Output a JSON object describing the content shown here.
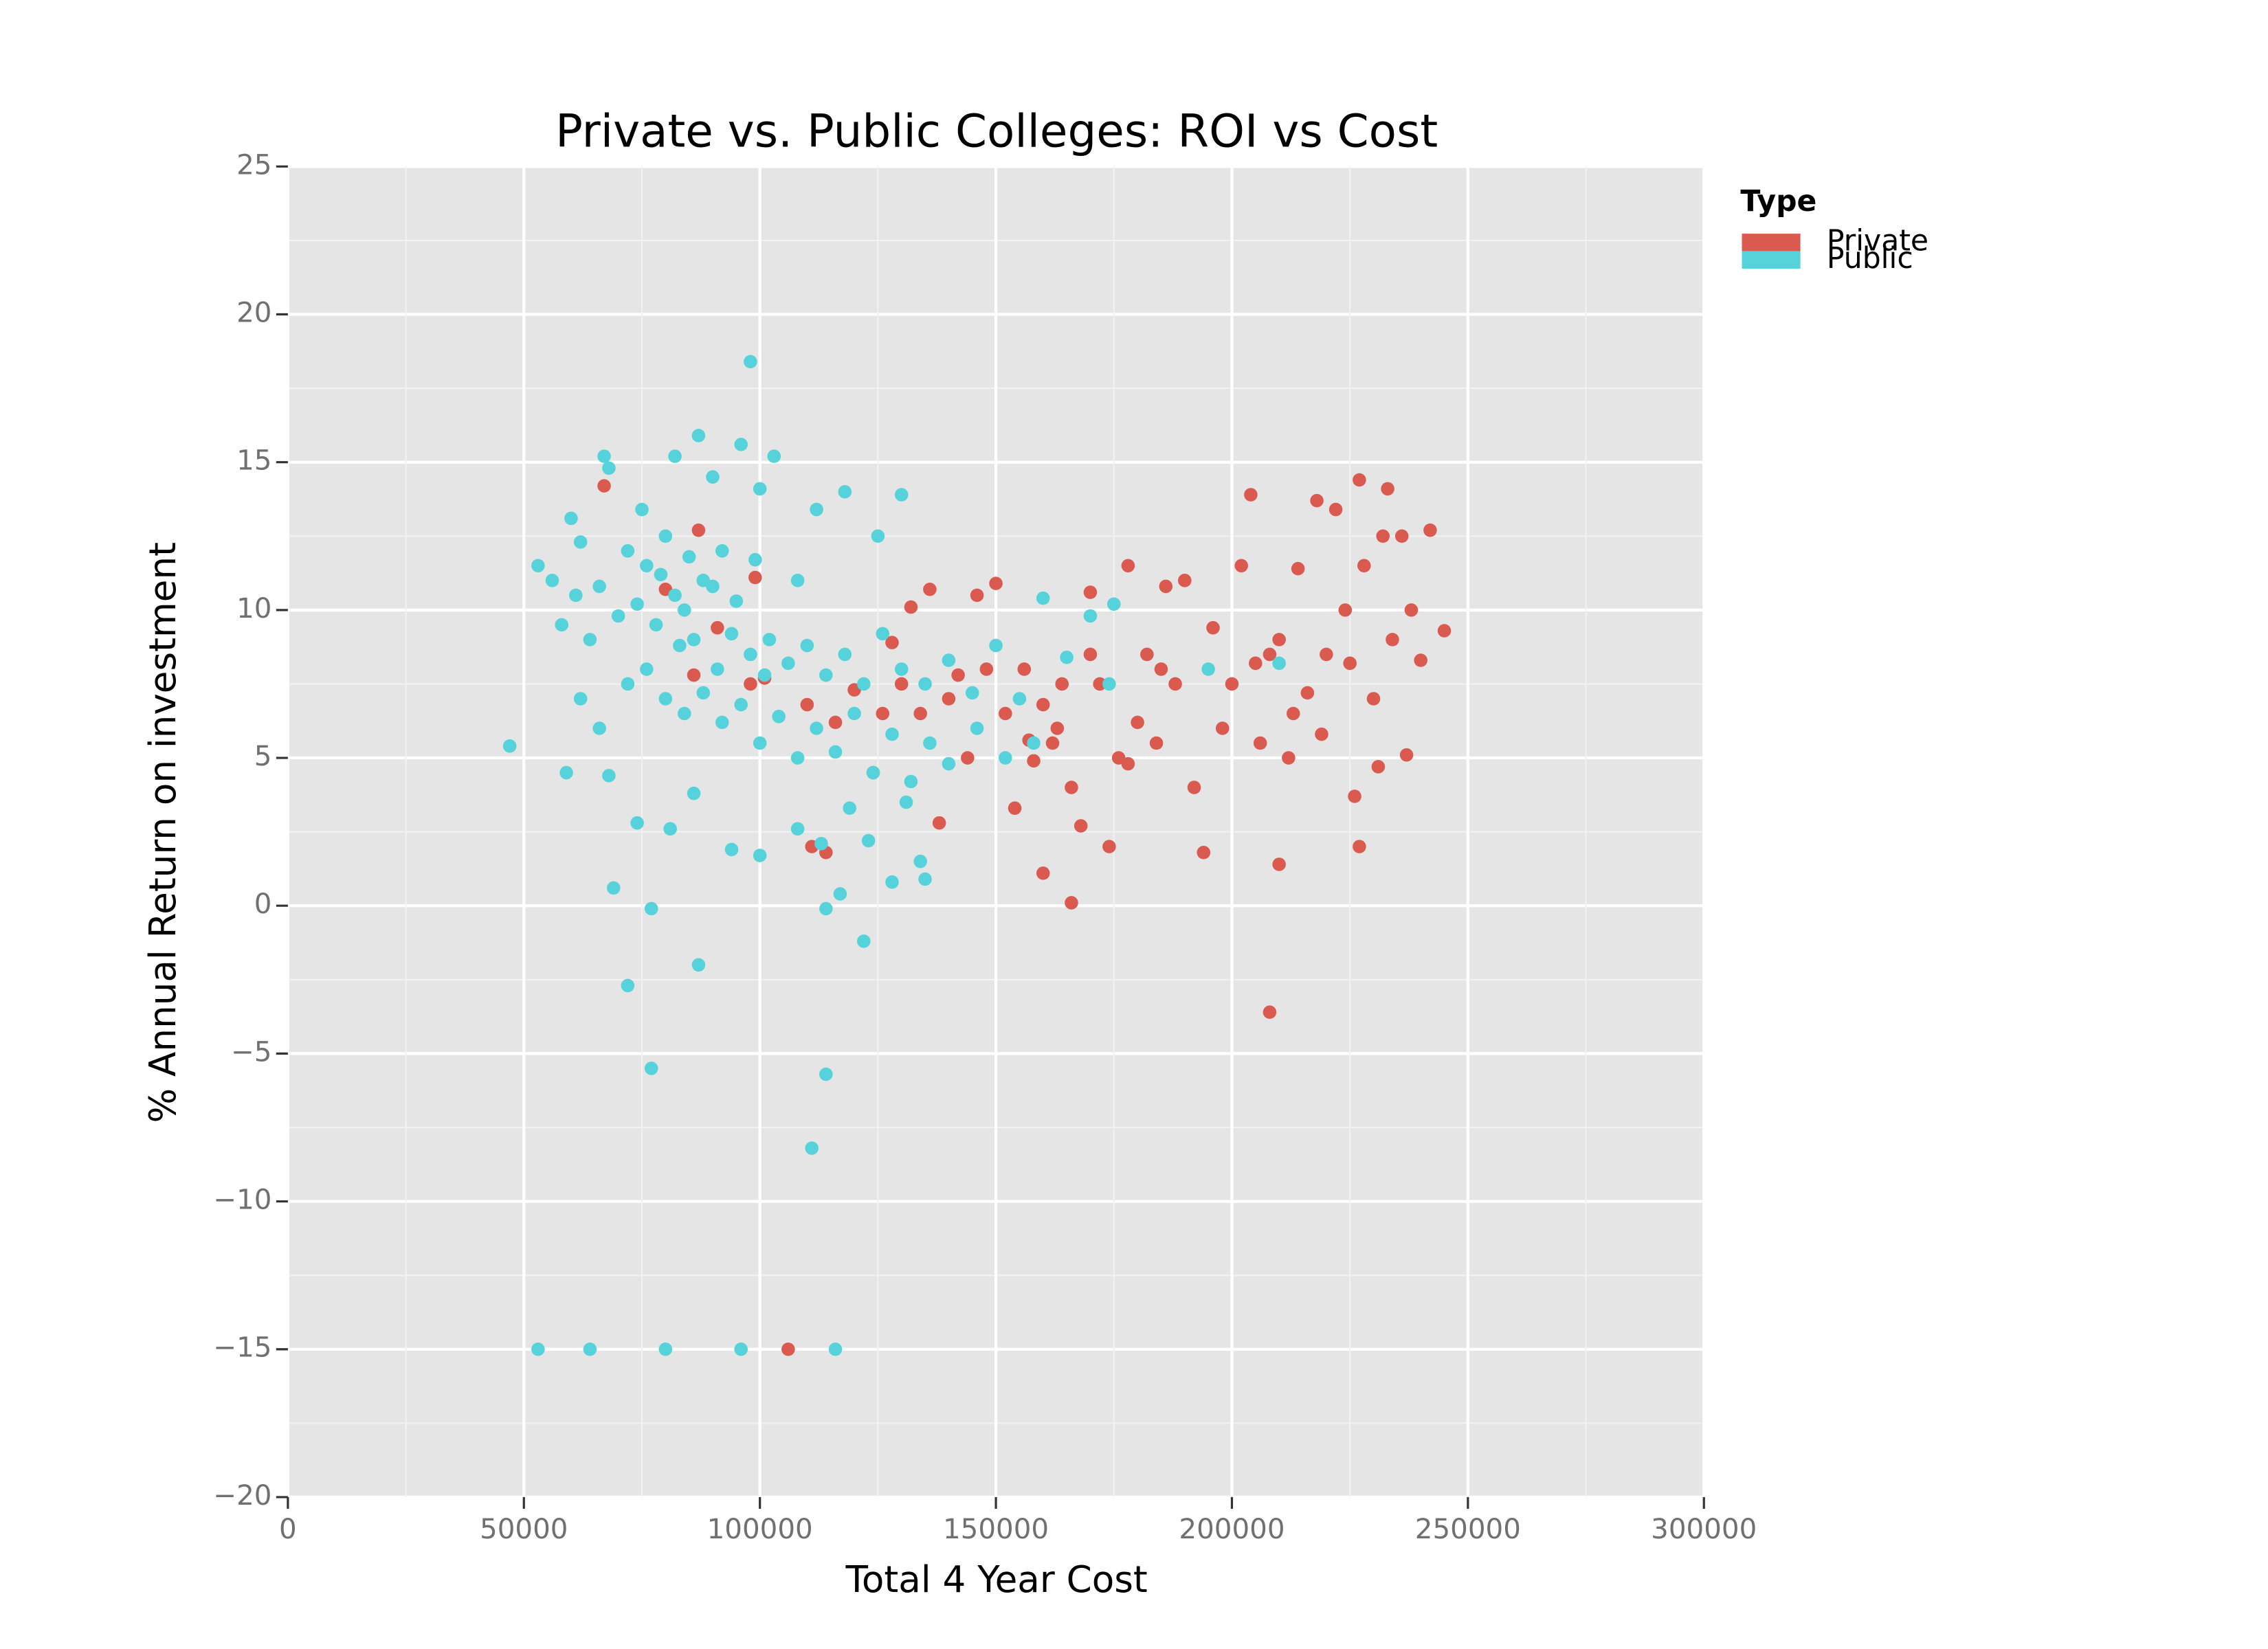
{
  "chart_data": {
    "type": "scatter",
    "title": "Private vs. Public Colleges: ROI vs Cost",
    "x_label": "Total 4 Year Cost",
    "y_label": "% Annual Return on investment",
    "legend_title": "Type",
    "legend_position": "right",
    "grid": true,
    "xlim": [
      0,
      300000
    ],
    "xticks": [
      0,
      50000,
      100000,
      150000,
      200000,
      250000,
      300000
    ],
    "ylim": [
      -20,
      25
    ],
    "yticks": [
      {
        "value": -20,
        "label": "−20"
      },
      {
        "value": -15,
        "label": "−15"
      },
      {
        "value": -10,
        "label": "−10"
      },
      {
        "value": -5,
        "label": "−5"
      },
      0,
      5,
      10,
      15,
      20,
      25
    ],
    "series": [
      {
        "name": "Private",
        "color": "#db5a4f",
        "x": [
          106000,
          208000,
          210000,
          166000,
          160000,
          114000,
          111000,
          67000,
          87000,
          80000,
          99000,
          86000,
          91000,
          98000,
          101000,
          110000,
          116000,
          120000,
          124000,
          128000,
          132000,
          136000,
          134000,
          138000,
          140000,
          144000,
          146000,
          148000,
          150000,
          152000,
          154000,
          156000,
          158000,
          160000,
          162000,
          164000,
          166000,
          168000,
          170000,
          172000,
          174000,
          176000,
          178000,
          180000,
          182000,
          184000,
          186000,
          188000,
          190000,
          192000,
          194000,
          196000,
          198000,
          200000,
          202000,
          204000,
          206000,
          208000,
          210000,
          212000,
          214000,
          216000,
          218000,
          220000,
          222000,
          224000,
          226000,
          227000,
          227000,
          228000,
          230000,
          232000,
          233000,
          234000,
          236000,
          237000,
          238000,
          240000,
          242000,
          245000,
          231000,
          225000,
          219000,
          213000,
          205000,
          185000,
          178000,
          170000,
          163000,
          157000,
          142000,
          130000,
          126000
        ],
        "values": [
          -15,
          -3.6,
          1.4,
          0.1,
          1.1,
          1.8,
          2.0,
          14.2,
          12.7,
          10.7,
          11.1,
          7.8,
          9.4,
          7.5,
          7.7,
          6.8,
          6.2,
          7.3,
          4.5,
          8.9,
          10.1,
          10.7,
          6.5,
          2.8,
          7.0,
          5.0,
          10.5,
          8.0,
          10.9,
          6.5,
          3.3,
          8.0,
          4.9,
          6.8,
          5.5,
          7.5,
          4.0,
          2.7,
          10.6,
          7.5,
          2.0,
          5.0,
          11.5,
          6.2,
          8.5,
          5.5,
          10.8,
          7.5,
          11.0,
          4.0,
          1.8,
          9.4,
          6.0,
          7.5,
          11.5,
          13.9,
          5.5,
          8.5,
          9.0,
          5.0,
          11.4,
          7.2,
          13.7,
          8.5,
          13.4,
          10.0,
          3.7,
          14.4,
          2.0,
          11.5,
          7.0,
          12.5,
          14.1,
          9.0,
          12.5,
          5.1,
          10.0,
          8.3,
          12.7,
          9.3,
          4.7,
          8.2,
          5.8,
          6.5,
          8.2,
          8.0,
          4.8,
          8.5,
          6.0,
          5.6,
          7.8,
          7.5,
          6.5
        ]
      },
      {
        "name": "Public",
        "color": "#56d2da",
        "x": [
          47000,
          53000,
          53000,
          64000,
          80000,
          96000,
          116000,
          111000,
          114000,
          77000,
          72000,
          87000,
          122000,
          77000,
          114000,
          69000,
          117000,
          128000,
          135000,
          98000,
          87000,
          96000,
          67000,
          82000,
          103000,
          60000,
          68000,
          75000,
          90000,
          100000,
          112000,
          118000,
          130000,
          62000,
          72000,
          80000,
          85000,
          92000,
          99000,
          108000,
          125000,
          58000,
          61000,
          66000,
          70000,
          74000,
          78000,
          82000,
          86000,
          90000,
          94000,
          98000,
          102000,
          106000,
          110000,
          114000,
          118000,
          122000,
          126000,
          130000,
          135000,
          140000,
          145000,
          150000,
          155000,
          160000,
          165000,
          170000,
          175000,
          62000,
          66000,
          72000,
          76000,
          80000,
          84000,
          88000,
          92000,
          96000,
          100000,
          104000,
          108000,
          112000,
          116000,
          120000,
          124000,
          128000,
          132000,
          136000,
          140000,
          146000,
          152000,
          158000,
          174000,
          195000,
          210000,
          59000,
          68000,
          74000,
          81000,
          86000,
          94000,
          100000,
          108000,
          113000,
          119000,
          123000,
          131000,
          134000,
          88000,
          84000,
          79000,
          91000,
          95000,
          101000,
          83000,
          76000,
          64000,
          56000
        ],
        "values": [
          5.4,
          11.5,
          -15,
          -15,
          -15,
          -15,
          -15,
          -8.2,
          -5.7,
          -5.5,
          -2.7,
          -2,
          -1.2,
          -0.1,
          -0.1,
          0.6,
          0.4,
          0.8,
          0.9,
          18.4,
          15.9,
          15.6,
          15.2,
          15.2,
          15.2,
          13.1,
          14.8,
          13.4,
          14.5,
          14.1,
          13.4,
          14.0,
          13.9,
          12.3,
          12.0,
          12.5,
          11.8,
          12.0,
          11.7,
          11.0,
          12.5,
          9.5,
          10.5,
          10.8,
          9.8,
          10.2,
          9.5,
          10.5,
          9.0,
          10.8,
          9.2,
          8.5,
          9.0,
          8.2,
          8.8,
          7.8,
          8.5,
          7.5,
          9.2,
          8.0,
          7.5,
          8.3,
          7.2,
          8.8,
          7.0,
          10.4,
          8.4,
          9.8,
          10.2,
          7.0,
          6.0,
          7.5,
          8.0,
          7.0,
          6.5,
          7.2,
          6.2,
          6.8,
          5.5,
          6.4,
          5.0,
          6.0,
          5.2,
          6.5,
          4.5,
          5.8,
          4.2,
          5.5,
          4.8,
          6.0,
          5.0,
          5.5,
          7.5,
          8.0,
          8.2,
          4.5,
          4.4,
          2.8,
          2.6,
          3.8,
          1.9,
          1.7,
          2.6,
          2.1,
          3.3,
          2.2,
          3.5,
          1.5,
          11.0,
          10.0,
          11.2,
          8.0,
          10.3,
          7.8,
          8.8,
          11.5,
          9.0,
          11.0
        ]
      }
    ]
  }
}
